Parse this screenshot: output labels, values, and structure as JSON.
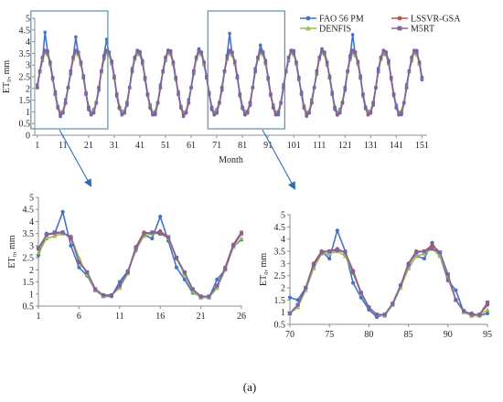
{
  "caption": "(a)",
  "colors": {
    "FAO 56 PM": "#4472c4",
    "LSSVR-GSA": "#c0504d",
    "DENFIS": "#9bbb59",
    "M5RT": "#8064a2",
    "frame": "#5b8fb0",
    "arrow": "#2e6db4"
  },
  "chart_data": [
    {
      "type": "line",
      "title": "",
      "xlabel": "Month",
      "ylabel": "ET₀, mm",
      "xlim": [
        0,
        153
      ],
      "ylim": [
        0,
        5
      ],
      "xticks": [
        1,
        11,
        21,
        31,
        41,
        51,
        61,
        71,
        81,
        91,
        101,
        111,
        121,
        131,
        141,
        151
      ],
      "yticks": [
        0,
        0.5,
        1,
        1.5,
        2,
        2.5,
        3,
        3.5,
        4,
        4.5,
        5
      ],
      "legend": "top-right",
      "highlight_ranges": [
        [
          1,
          26
        ],
        [
          70,
          95
        ]
      ],
      "model": {
        "start_month": 1,
        "period_months": 12,
        "mean": 2.25,
        "amplitude": 1.35,
        "peak_month": 4.3
      },
      "series": [
        {
          "name": "FAO 56 PM",
          "marker": "circle",
          "peaks": [
            [
              4,
              4.4
            ],
            [
              16,
              4.2
            ],
            [
              28,
              4.1
            ],
            [
              76,
              4.35
            ],
            [
              88,
              3.85
            ],
            [
              124,
              4.3
            ]
          ]
        },
        {
          "name": "LSSVR-GSA",
          "marker": "circle"
        },
        {
          "name": "DENFIS",
          "marker": "triangle"
        },
        {
          "name": "M5RT",
          "marker": "square"
        }
      ]
    },
    {
      "type": "line",
      "xlim": [
        1,
        26
      ],
      "ylim": [
        0.5,
        5
      ],
      "xticks": [
        1,
        6,
        11,
        16,
        21,
        26
      ],
      "yticks": [
        0.5,
        1,
        1.5,
        2,
        2.5,
        3,
        3.5,
        4,
        4.5,
        5
      ],
      "ylabel": "ET₀, mm",
      "x": [
        1,
        2,
        3,
        4,
        5,
        6,
        7,
        8,
        9,
        10,
        11,
        12,
        13,
        14,
        15,
        16,
        17,
        18,
        19,
        20,
        21,
        22,
        23,
        24,
        25,
        26
      ],
      "series": [
        {
          "name": "FAO 56 PM",
          "values": [
            2.6,
            3.5,
            3.5,
            4.4,
            3.0,
            2.1,
            1.75,
            1.15,
            0.9,
            0.9,
            1.5,
            1.95,
            2.8,
            3.45,
            3.3,
            4.2,
            3.2,
            2.1,
            1.6,
            1.05,
            0.9,
            0.85,
            1.6,
            2.0,
            2.95,
            3.25
          ]
        },
        {
          "name": "LSSVR-GSA",
          "values": [
            2.85,
            3.45,
            3.5,
            3.55,
            3.3,
            2.4,
            1.9,
            1.2,
            0.95,
            0.95,
            1.3,
            1.9,
            2.95,
            3.55,
            3.5,
            3.6,
            3.35,
            2.5,
            1.85,
            1.2,
            0.9,
            0.9,
            1.3,
            2.1,
            3.05,
            3.55
          ]
        },
        {
          "name": "DENFIS",
          "values": [
            2.7,
            3.3,
            3.4,
            3.5,
            3.4,
            2.5,
            1.8,
            1.15,
            0.9,
            0.95,
            1.25,
            1.85,
            2.85,
            3.4,
            3.5,
            3.5,
            3.3,
            2.45,
            1.8,
            1.1,
            0.85,
            0.85,
            1.25,
            2.0,
            2.95,
            3.3
          ]
        },
        {
          "name": "M5RT",
          "values": [
            2.9,
            3.45,
            3.55,
            3.55,
            3.35,
            2.3,
            1.9,
            1.2,
            0.95,
            0.95,
            1.35,
            1.9,
            2.9,
            3.5,
            3.55,
            3.5,
            3.35,
            2.5,
            1.9,
            1.2,
            0.9,
            0.9,
            1.35,
            2.05,
            3.0,
            3.5
          ]
        }
      ]
    },
    {
      "type": "line",
      "xlim": [
        70,
        95
      ],
      "ylim": [
        0.5,
        5
      ],
      "xticks": [
        70,
        75,
        80,
        85,
        90,
        95
      ],
      "yticks": [
        0.5,
        1,
        1.5,
        2,
        2.5,
        3,
        3.5,
        4,
        4.5,
        5
      ],
      "ylabel": "ET₀, mm",
      "x": [
        70,
        71,
        72,
        73,
        74,
        75,
        76,
        77,
        78,
        79,
        80,
        81,
        82,
        83,
        84,
        85,
        86,
        87,
        88,
        89,
        90,
        91,
        92,
        93,
        94,
        95
      ],
      "series": [
        {
          "name": "FAO 56 PM",
          "values": [
            1.6,
            1.5,
            2.0,
            2.8,
            3.5,
            3.2,
            4.35,
            3.5,
            2.2,
            1.6,
            1.1,
            0.8,
            0.9,
            1.3,
            2.1,
            2.8,
            3.3,
            3.2,
            3.85,
            3.3,
            2.3,
            1.9,
            1.0,
            0.95,
            0.85,
            0.95
          ]
        },
        {
          "name": "LSSVR-GSA",
          "values": [
            0.95,
            1.3,
            2.0,
            3.0,
            3.5,
            3.5,
            3.6,
            3.45,
            2.7,
            1.8,
            1.2,
            0.9,
            0.9,
            1.35,
            2.1,
            3.0,
            3.5,
            3.5,
            3.75,
            3.45,
            2.4,
            1.5,
            1.05,
            0.9,
            0.9,
            1.3
          ]
        },
        {
          "name": "DENFIS",
          "values": [
            0.95,
            1.2,
            1.9,
            2.8,
            3.4,
            3.4,
            3.5,
            3.3,
            2.6,
            1.75,
            1.2,
            0.9,
            0.85,
            1.3,
            2.0,
            2.8,
            3.3,
            3.4,
            3.6,
            3.3,
            2.5,
            1.5,
            1.0,
            0.85,
            0.85,
            1.1
          ]
        },
        {
          "name": "M5RT",
          "values": [
            0.95,
            1.3,
            2.0,
            2.95,
            3.45,
            3.5,
            3.55,
            3.45,
            2.65,
            1.8,
            1.2,
            0.9,
            0.9,
            1.35,
            2.1,
            2.95,
            3.45,
            3.5,
            3.6,
            3.45,
            2.55,
            1.5,
            1.05,
            0.9,
            0.9,
            1.4
          ]
        }
      ]
    }
  ]
}
